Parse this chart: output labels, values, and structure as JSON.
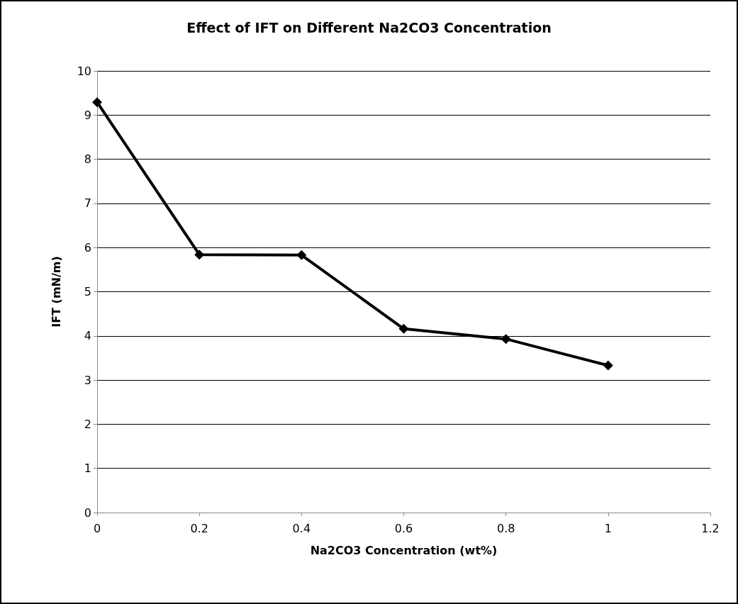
{
  "chart_data": {
    "type": "line",
    "title": "Effect of IFT on Different Na2CO3 Concentration",
    "xlabel": "Na2CO3 Concentration (wt%)",
    "ylabel": "IFT (mN/m)",
    "x": [
      0,
      0.2,
      0.4,
      0.6,
      0.8,
      1
    ],
    "series": [
      {
        "color": "#000000",
        "values": [
          9.29,
          5.84,
          5.83,
          4.16,
          3.93,
          3.33
        ]
      }
    ],
    "xlim": [
      0,
      1.2
    ],
    "xticks": [
      0,
      0.2,
      0.4,
      0.6,
      0.8,
      1,
      1.2
    ],
    "ylim": [
      0,
      10
    ],
    "yticks": [
      0,
      1,
      2,
      3,
      4,
      5,
      6,
      7,
      8,
      9,
      10
    ],
    "grid": "y",
    "marker": "diamond",
    "line_style": "solid"
  }
}
